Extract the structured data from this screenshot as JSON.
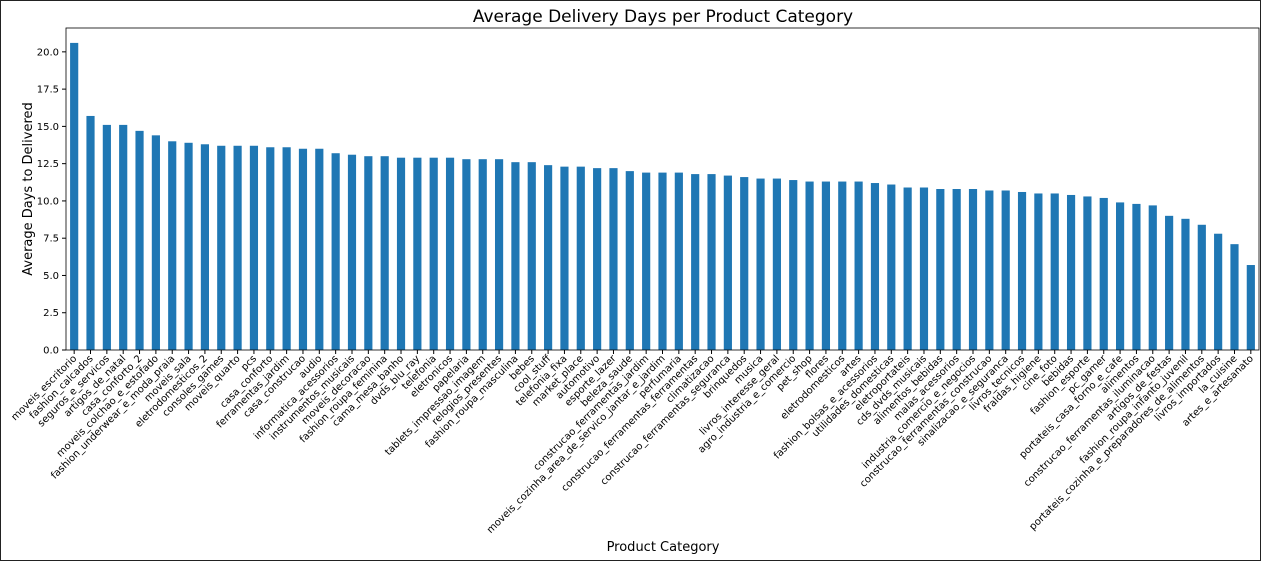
{
  "chart_data": {
    "type": "bar",
    "title": "Average Delivery Days per Product Category",
    "x_label": "Product Category",
    "y_label": "Average Days to Delivered",
    "color": "#1f77b4",
    "categories": [
      "moveis_escritorio",
      "fashion_calcados",
      "seguros_e_servicos",
      "artigos_de_natal",
      "casa_conforto_2",
      "moveis_colchao_e_estofado",
      "fashion_underwear_e_moda_praia",
      "moveis_sala",
      "eletrodomesticos_2",
      "consoles_games",
      "moveis_quarto",
      "pcs",
      "casa_conforto",
      "ferramentas_jardim",
      "casa_construcao",
      "audio",
      "informatica_acessorios",
      "instrumentos_musicais",
      "moveis_decoracao",
      "fashion_roupa_feminina",
      "cama_mesa_banho",
      "dvds_blu_ray",
      "telefonia",
      "eletronicos",
      "papelaria",
      "tablets_impressao_imagem",
      "relogios_presentes",
      "fashion_roupa_masculina",
      "bebes",
      "cool_stuff",
      "telefonia_fixa",
      "market_place",
      "automotivo",
      "esporte_lazer",
      "beleza_saude",
      "construcao_ferramentas_jardim",
      "moveis_cozinha_area_de_servico_jantar_e_jardim",
      "perfumaria",
      "construcao_ferramentas_ferramentas",
      "climatizacao",
      "construcao_ferramentas_seguranca",
      "brinquedos",
      "musica",
      "livros_interesse_geral",
      "agro_industria_e_comercio",
      "pet_shop",
      "flores",
      "eletrodomesticos",
      "artes",
      "fashion_bolsas_e_acessorios",
      "utilidades_domesticas",
      "eletroportateis",
      "cds_dvds_musicais",
      "alimentos_bebidas",
      "malas_acessorios",
      "industria_comercio_e_negocios",
      "construcao_ferramentas_construcao",
      "sinalizacao_e_seguranca",
      "livros_tecnicos",
      "fraldas_higiene",
      "cine_foto",
      "bebidas",
      "fashion_esporte",
      "pc_gamer",
      "portateis_casa_forno_e_cafe",
      "alimentos",
      "construcao_ferramentas_iluminacao",
      "artigos_de_festas",
      "fashion_roupa_infanto_juvenil",
      "portateis_cozinha_e_preparadores_de_alimentos",
      "livros_importados",
      "la_cuisine",
      "artes_e_artesanato"
    ],
    "values": [
      20.6,
      15.7,
      15.1,
      15.1,
      14.7,
      14.4,
      14.0,
      13.9,
      13.8,
      13.7,
      13.7,
      13.7,
      13.6,
      13.6,
      13.5,
      13.5,
      13.2,
      13.1,
      13.0,
      13.0,
      12.9,
      12.9,
      12.9,
      12.9,
      12.8,
      12.8,
      12.8,
      12.6,
      12.6,
      12.4,
      12.3,
      12.3,
      12.2,
      12.2,
      12.0,
      11.9,
      11.9,
      11.9,
      11.8,
      11.8,
      11.7,
      11.6,
      11.5,
      11.5,
      11.4,
      11.3,
      11.3,
      11.3,
      11.3,
      11.2,
      11.1,
      10.9,
      10.9,
      10.8,
      10.8,
      10.8,
      10.7,
      10.7,
      10.6,
      10.5,
      10.5,
      10.4,
      10.3,
      10.2,
      9.9,
      9.8,
      9.7,
      9.0,
      8.8,
      8.4,
      7.8,
      7.1,
      5.7
    ],
    "ylim": [
      0,
      21.6
    ],
    "yticks": [
      {
        "value": 0,
        "label": "0.0"
      },
      2.5,
      {
        "value": 5,
        "label": "5.0"
      },
      7.5,
      {
        "value": 10,
        "label": "10.0"
      },
      12.5,
      {
        "value": 15,
        "label": "15.0"
      },
      17.5,
      {
        "value": 20,
        "label": "20.0"
      }
    ]
  }
}
